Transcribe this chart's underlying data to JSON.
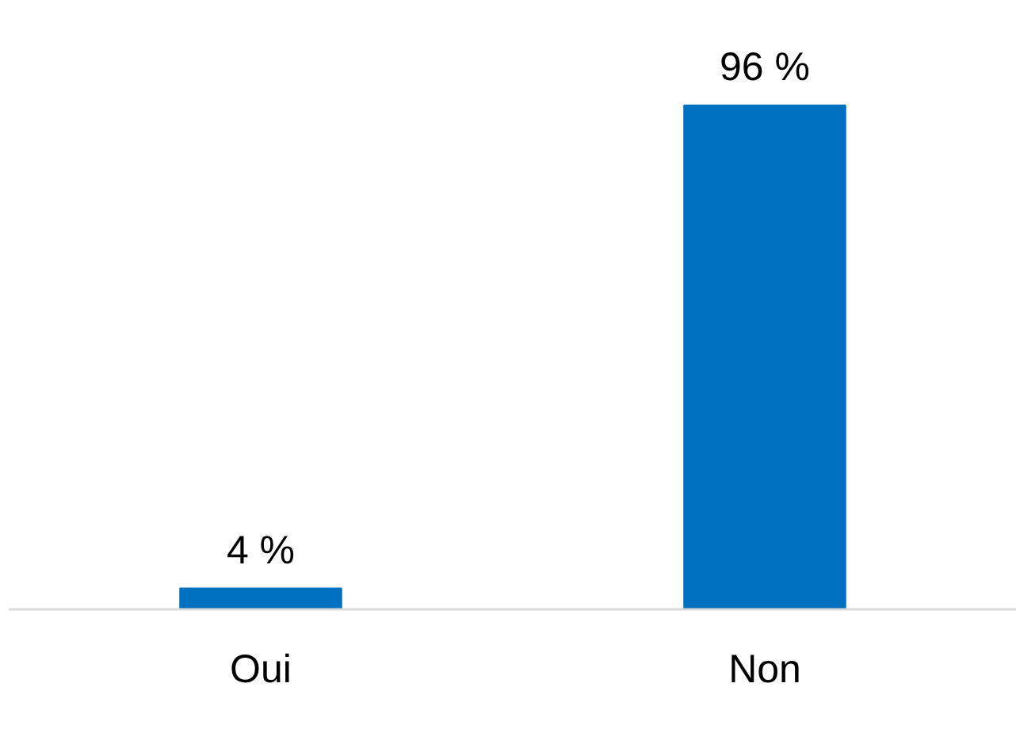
{
  "chart_data": {
    "type": "bar",
    "categories": [
      "Oui",
      "Non"
    ],
    "values": [
      4,
      96
    ],
    "value_labels": [
      "4 %",
      "96 %"
    ],
    "color": "#0070c0"
  }
}
